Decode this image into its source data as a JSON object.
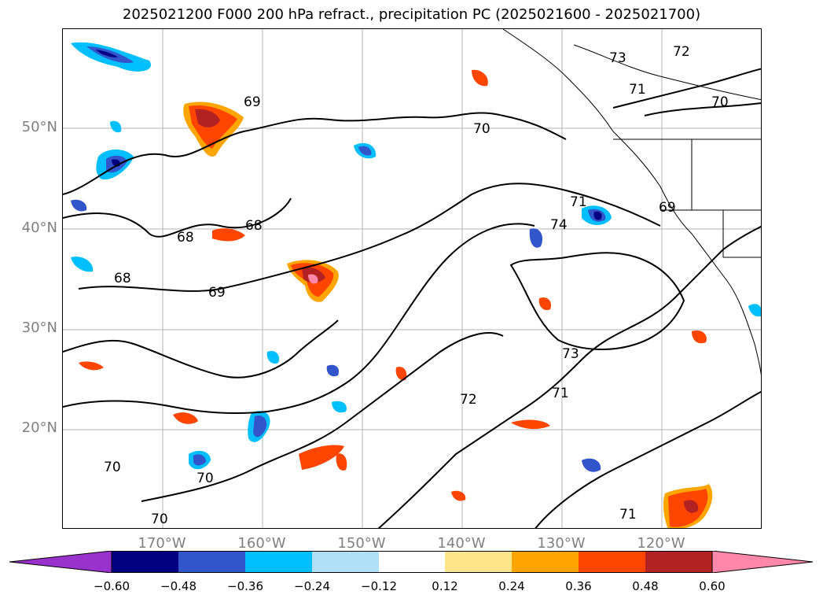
{
  "title": "2025021200 F000 200 hPa refract., precipitation PC (2025021600 - 2025021700)",
  "latitude_labels": [
    "50°N",
    "40°N",
    "30°N",
    "20°N"
  ],
  "longitude_labels": [
    "170°W",
    "160°W",
    "150°W",
    "140°W",
    "130°W",
    "120°W"
  ],
  "contour_labels": [
    "68",
    "68",
    "68",
    "69",
    "69",
    "69",
    "70",
    "70",
    "70",
    "70",
    "70",
    "71",
    "71",
    "71",
    "71",
    "72",
    "72",
    "73",
    "73",
    "74"
  ],
  "colorbar": {
    "tick_labels": [
      "−0.60",
      "−0.48",
      "−0.36",
      "−0.24",
      "−0.12",
      "0.12",
      "0.24",
      "0.36",
      "0.48",
      "0.60"
    ],
    "colors": [
      "#9932cc",
      "#000080",
      "#3355cc",
      "#00bfff",
      "#b0e0f8",
      "#ffffff",
      "#fde68a",
      "#ffa500",
      "#ff4500",
      "#b22222",
      "#ff88aa"
    ],
    "extend": "both"
  },
  "colors": {
    "gridline": "#b3b3b3",
    "axis_label": "#808080",
    "contour": "#000000"
  }
}
